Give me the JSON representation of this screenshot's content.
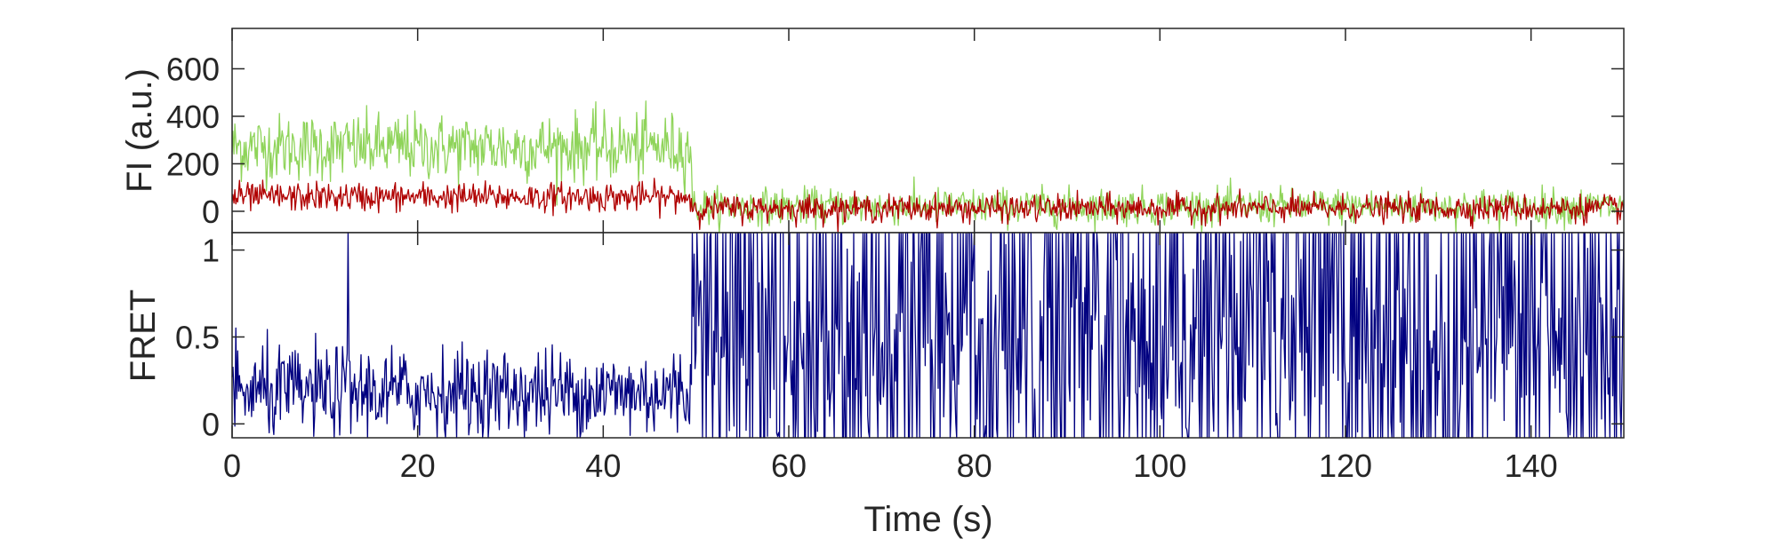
{
  "chart_data": [
    {
      "type": "line",
      "ylabel": "FI (a.u.)",
      "xlim": [
        0,
        150
      ],
      "ylim": [
        -90,
        770
      ],
      "yticks": [
        0,
        200,
        400,
        600
      ],
      "xticks": [
        0,
        20,
        40,
        60,
        80,
        100,
        120,
        140
      ],
      "show_x_ticklabels": false,
      "grid": false,
      "legend": "none",
      "series": [
        {
          "color": "#8fd45a",
          "segments": [
            {
              "x_start": 0,
              "x_end": 49.5,
              "mean": 270,
              "noise": 70,
              "max": 520
            },
            {
              "x_start": 49.6,
              "x_end": 150,
              "mean": 20,
              "noise": 38,
              "max": 230
            }
          ]
        },
        {
          "color": "#b00000",
          "segments": [
            {
              "x_start": 0,
              "x_end": 49.5,
              "mean": 60,
              "noise": 30,
              "max": 180
            },
            {
              "x_start": 49.6,
              "x_end": 150,
              "mean": 12,
              "noise": 28,
              "max": 200
            }
          ]
        }
      ]
    },
    {
      "type": "line",
      "ylabel": "FRET",
      "xlabel": "Time (s)",
      "xlim": [
        0,
        150
      ],
      "ylim": [
        -0.08,
        1.1
      ],
      "yticks": [
        0,
        0.5,
        1
      ],
      "yticklabels": [
        "0",
        "0.5",
        "1"
      ],
      "xticks": [
        0,
        20,
        40,
        60,
        80,
        100,
        120,
        140
      ],
      "xticklabels": [
        "0",
        "20",
        "40",
        "60",
        "80",
        "100",
        "120",
        "140"
      ],
      "grid": false,
      "legend": "none",
      "series": [
        {
          "color": "#000080",
          "segments": [
            {
              "x_start": 0,
              "x_end": 49.5,
              "mean": 0.18,
              "noise": 0.13,
              "clip": [
                -0.08,
                1.1
              ]
            },
            {
              "x_start": 49.6,
              "x_end": 150,
              "mean": 0.45,
              "noise": 0.9,
              "clip": [
                -0.08,
                1.1
              ]
            }
          ],
          "spikes": [
            {
              "x": 12.5,
              "value": 1.1
            }
          ]
        }
      ]
    }
  ]
}
